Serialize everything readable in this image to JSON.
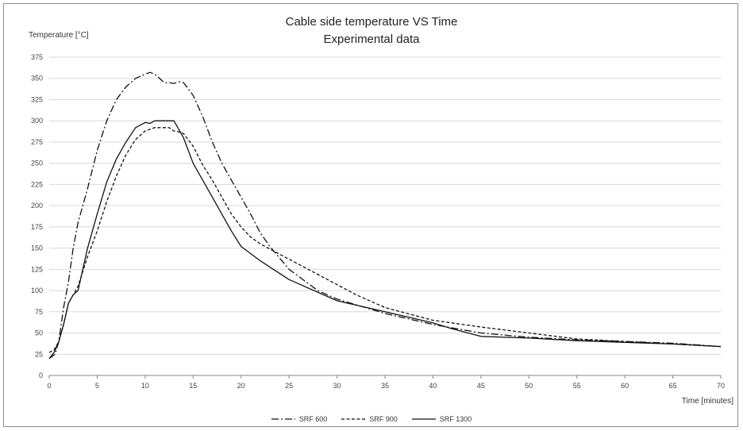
{
  "chart_data": {
    "type": "line",
    "title": "Cable side temperature VS Time",
    "subtitle": "Experimental data",
    "ylabel": "Temperature [°C]",
    "xlabel": "Time [minutes]",
    "xlim": [
      0,
      70
    ],
    "ylim": [
      0,
      375
    ],
    "xticks": [
      0,
      5,
      10,
      15,
      20,
      25,
      30,
      35,
      40,
      45,
      50,
      55,
      60,
      65,
      70
    ],
    "yticks": [
      0,
      25,
      50,
      75,
      100,
      125,
      150,
      175,
      200,
      225,
      250,
      275,
      300,
      325,
      350,
      375
    ],
    "grid": "horizontal",
    "legend_position": "bottom",
    "series": [
      {
        "name": "SRF 600",
        "style": "dashdot",
        "x": [
          0,
          0.6,
          1,
          1.5,
          2,
          2.5,
          3,
          4,
          5,
          6,
          7,
          8,
          9,
          10,
          10.5,
          11,
          11.5,
          12,
          12.5,
          13,
          13.5,
          14,
          15,
          16,
          17,
          18,
          19,
          20,
          21,
          22,
          23,
          25,
          28,
          30,
          35,
          40,
          45,
          50,
          55,
          60,
          65,
          70
        ],
        "y": [
          20,
          25,
          40,
          80,
          110,
          150,
          180,
          220,
          265,
          300,
          325,
          340,
          350,
          355,
          357,
          355,
          350,
          345,
          345,
          344,
          346,
          345,
          330,
          305,
          275,
          250,
          230,
          210,
          190,
          168,
          152,
          125,
          100,
          90,
          73,
          60,
          50,
          45,
          42,
          40,
          38,
          34
        ]
      },
      {
        "name": "SRF 900",
        "style": "dashed",
        "x": [
          0,
          0.5,
          1,
          1.5,
          2,
          2.5,
          3,
          4,
          5,
          6,
          6.5,
          7,
          8,
          9,
          10,
          11,
          12,
          12.5,
          13,
          13.5,
          14,
          15,
          16,
          17,
          18,
          19,
          20,
          21,
          22,
          25,
          30,
          32,
          35,
          40,
          45,
          50,
          55,
          60,
          65,
          70
        ],
        "y": [
          27,
          30,
          40,
          60,
          85,
          95,
          105,
          140,
          170,
          205,
          220,
          235,
          260,
          278,
          288,
          292,
          292,
          292,
          288,
          287,
          285,
          270,
          248,
          230,
          210,
          190,
          175,
          163,
          155,
          137,
          107,
          95,
          80,
          65,
          57,
          50,
          43,
          40,
          37,
          34
        ]
      },
      {
        "name": "SRF 1300",
        "style": "solid",
        "x": [
          0,
          0.5,
          1,
          1.5,
          2,
          2.5,
          3,
          4,
          5,
          6,
          7,
          8,
          9,
          10,
          10.5,
          11,
          11.5,
          12,
          12.5,
          13,
          14,
          15,
          16,
          17,
          18,
          19,
          20,
          22,
          25,
          30,
          35,
          40,
          42,
          45,
          50,
          55,
          60,
          65,
          70
        ],
        "y": [
          20,
          27,
          40,
          60,
          85,
          95,
          100,
          150,
          190,
          228,
          255,
          275,
          292,
          298,
          297,
          300,
          300,
          300,
          300,
          300,
          280,
          250,
          230,
          210,
          190,
          170,
          152,
          135,
          113,
          88,
          75,
          62,
          55,
          46,
          44,
          41,
          39,
          37,
          34
        ]
      }
    ]
  }
}
